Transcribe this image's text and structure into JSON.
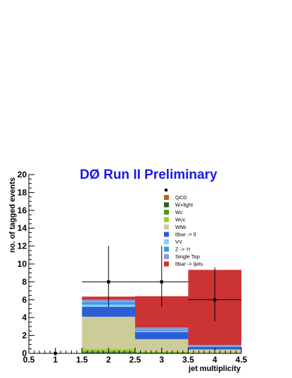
{
  "chart_data": {
    "type": "bar",
    "stacked": true,
    "title": "DØ Run II Preliminary",
    "xlabel": "jet multiplicity",
    "ylabel": "no. of tagged events",
    "xlim": [
      0.5,
      4.5
    ],
    "ylim": [
      0,
      20
    ],
    "x_ticks": [
      "0.5",
      "1",
      "1.5",
      "2",
      "2.5",
      "3",
      "3.5",
      "4",
      "4.5"
    ],
    "y_ticks": [
      "0",
      "2",
      "4",
      "6",
      "8",
      "10",
      "12",
      "14",
      "16",
      "18",
      "20"
    ],
    "bins": [
      {
        "low": 0.5,
        "high": 1.5,
        "center": 1
      },
      {
        "low": 1.5,
        "high": 2.5,
        "center": 2
      },
      {
        "low": 2.5,
        "high": 3.5,
        "center": 3
      },
      {
        "low": 3.5,
        "high": 4.5,
        "center": 4
      }
    ],
    "series": [
      {
        "name": "QCD",
        "color": "#b5651d",
        "values": [
          0,
          0.05,
          0.02,
          0.01
        ]
      },
      {
        "name": "W+light",
        "color": "#2d5e2d",
        "values": [
          0,
          0.05,
          0.02,
          0.01
        ]
      },
      {
        "name": "Wc",
        "color": "#4a9a2a",
        "values": [
          0,
          0.1,
          0.05,
          0.02
        ]
      },
      {
        "name": "Wcc",
        "color": "#9acd32",
        "values": [
          0,
          0.3,
          0.1,
          0.05
        ]
      },
      {
        "name": "Wbb",
        "color": "#cccc99",
        "values": [
          0,
          3.6,
          1.4,
          0.35
        ]
      },
      {
        "name": "ttbar -> ll",
        "color": "#2b5ed6",
        "values": [
          0,
          1.1,
          0.8,
          0.3
        ]
      },
      {
        "name": "VV",
        "color": "#87cefa",
        "values": [
          0,
          0.25,
          0.1,
          0.05
        ]
      },
      {
        "name": "Z -> ττ",
        "color": "#3399ee",
        "values": [
          0,
          0.25,
          0.1,
          0.05
        ]
      },
      {
        "name": "Single Top",
        "color": "#8899dd",
        "values": [
          0,
          0.3,
          0.3,
          0.1
        ]
      },
      {
        "name": "ttbar -> ljets",
        "color": "#cc3333",
        "values": [
          0,
          0.35,
          3.5,
          8.4
        ]
      }
    ],
    "data_points": {
      "name": "Data",
      "x": [
        1,
        2,
        3,
        4
      ],
      "y": [
        0,
        8,
        8,
        6
      ],
      "y_err_low": [
        0,
        2.8,
        2.8,
        2.4
      ],
      "y_err_high": [
        0,
        4.0,
        4.0,
        3.6
      ]
    },
    "legend_position": "top-right",
    "grid": false
  }
}
